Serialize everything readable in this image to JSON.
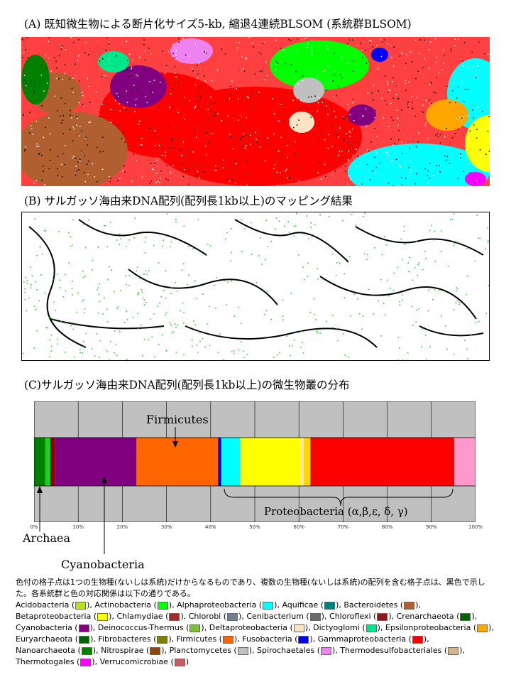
{
  "headings": {
    "a": "(A) 既知微生物による断片化サイズ5-kb, 縮退4連続BLSOM (系統群BLSOM)",
    "b": "(B) サルガッソ海由来DNA配列(配列長1kb以上)のマッピング結果",
    "c": "(C)サルガッソ海由来DNA配列(配列長1kb以上)の微生物叢の分布"
  },
  "annotations": {
    "firmicutes": "Firmicutes",
    "proteobacteria": "Proteobacteria (α,β,ε, δ, γ)",
    "archaea": "Archaea",
    "cyanobacteria": "Cyanobacteria"
  },
  "chart_data": {
    "type": "bar",
    "orientation": "horizontal-stacked",
    "xlim": [
      0,
      100
    ],
    "tick_labels": [
      "0%",
      "10%",
      "20%",
      "30%",
      "40%",
      "50%",
      "60%",
      "70%",
      "80%",
      "90%",
      "100%"
    ],
    "grid": true,
    "segments": [
      {
        "color": "#008000",
        "value": 2.5
      },
      {
        "color": "#22cc22",
        "value": 1.2
      },
      {
        "color": "#8b0000",
        "value": 1.0
      },
      {
        "color": "#800080",
        "value": 18.5
      },
      {
        "color": "#ff6600",
        "value": 18.5
      },
      {
        "color": "#0000ff",
        "value": 0.7
      },
      {
        "color": "#00ffff",
        "value": 4.3
      },
      {
        "color": "#ffff00",
        "value": 13.6
      },
      {
        "color": "#ffe4b5",
        "value": 0.8
      },
      {
        "color": "#ffd700",
        "value": 1.5
      },
      {
        "color": "#ff0000",
        "value": 32.6
      },
      {
        "color": "#ff99cc",
        "value": 4.8
      }
    ]
  },
  "caption": {
    "intro": "色付の格子点は1つの生物種(ないしは系統)だけからなるものであり、複数の生物種(ないしは系統)の配列を含む格子点は、黒色で示した。各系統群と色の対応関係は以下の通りである。",
    "legend": [
      {
        "name": "Acidobacteria",
        "color": "#b5e61d"
      },
      {
        "name": "Actinobacteria",
        "color": "#00ff00"
      },
      {
        "name": "Alphaproteobacteria",
        "color": "#00ffff"
      },
      {
        "name": "Aquificae",
        "color": "#008080"
      },
      {
        "name": "Bacteroidetes",
        "color": "#b06030"
      },
      {
        "name": "Betaproteobacteria",
        "color": "#ffff00"
      },
      {
        "name": "Chlamydiae",
        "color": "#a52a2a"
      },
      {
        "name": "Chlorobi",
        "color": "#708090"
      },
      {
        "name": "Cenibacterium",
        "color": "#6b6b6b"
      },
      {
        "name": "Chloroflexi",
        "color": "#8b1a1a"
      },
      {
        "name": "Crenarchaeota",
        "color": "#006400"
      },
      {
        "name": "Cyanobacteria",
        "color": "#800080"
      },
      {
        "name": "Deinococcus-Thermus",
        "color": "#7cbf3c"
      },
      {
        "name": "Deltaproteobacteria",
        "color": "#ffe4c4"
      },
      {
        "name": "Dictyoglomi",
        "color": "#00e68a"
      },
      {
        "name": "Epsilonproteobacteria",
        "color": "#ffa500"
      },
      {
        "name": "Euryarchaeota",
        "color": "#006400"
      },
      {
        "name": "Fibrobacteres",
        "color": "#808000"
      },
      {
        "name": "Firmicutes",
        "color": "#ff6600"
      },
      {
        "name": "Fusobacteria",
        "color": "#0000ff"
      },
      {
        "name": "Gammaproteobacteria",
        "color": "#ff0000"
      },
      {
        "name": "Nanoarchaeota",
        "color": "#008000"
      },
      {
        "name": "Nitrospirae",
        "color": "#8b4513"
      },
      {
        "name": "Planctomycetes",
        "color": "#c0c0c0"
      },
      {
        "name": "Spirochaetales",
        "color": "#ee82ee"
      },
      {
        "name": "Thermodesulfobacteriales",
        "color": "#d2b48c"
      },
      {
        "name": "Thermotogales",
        "color": "#ff00ff"
      },
      {
        "name": "Verrucomicrobiae",
        "color": "#cd5c5c"
      }
    ]
  }
}
